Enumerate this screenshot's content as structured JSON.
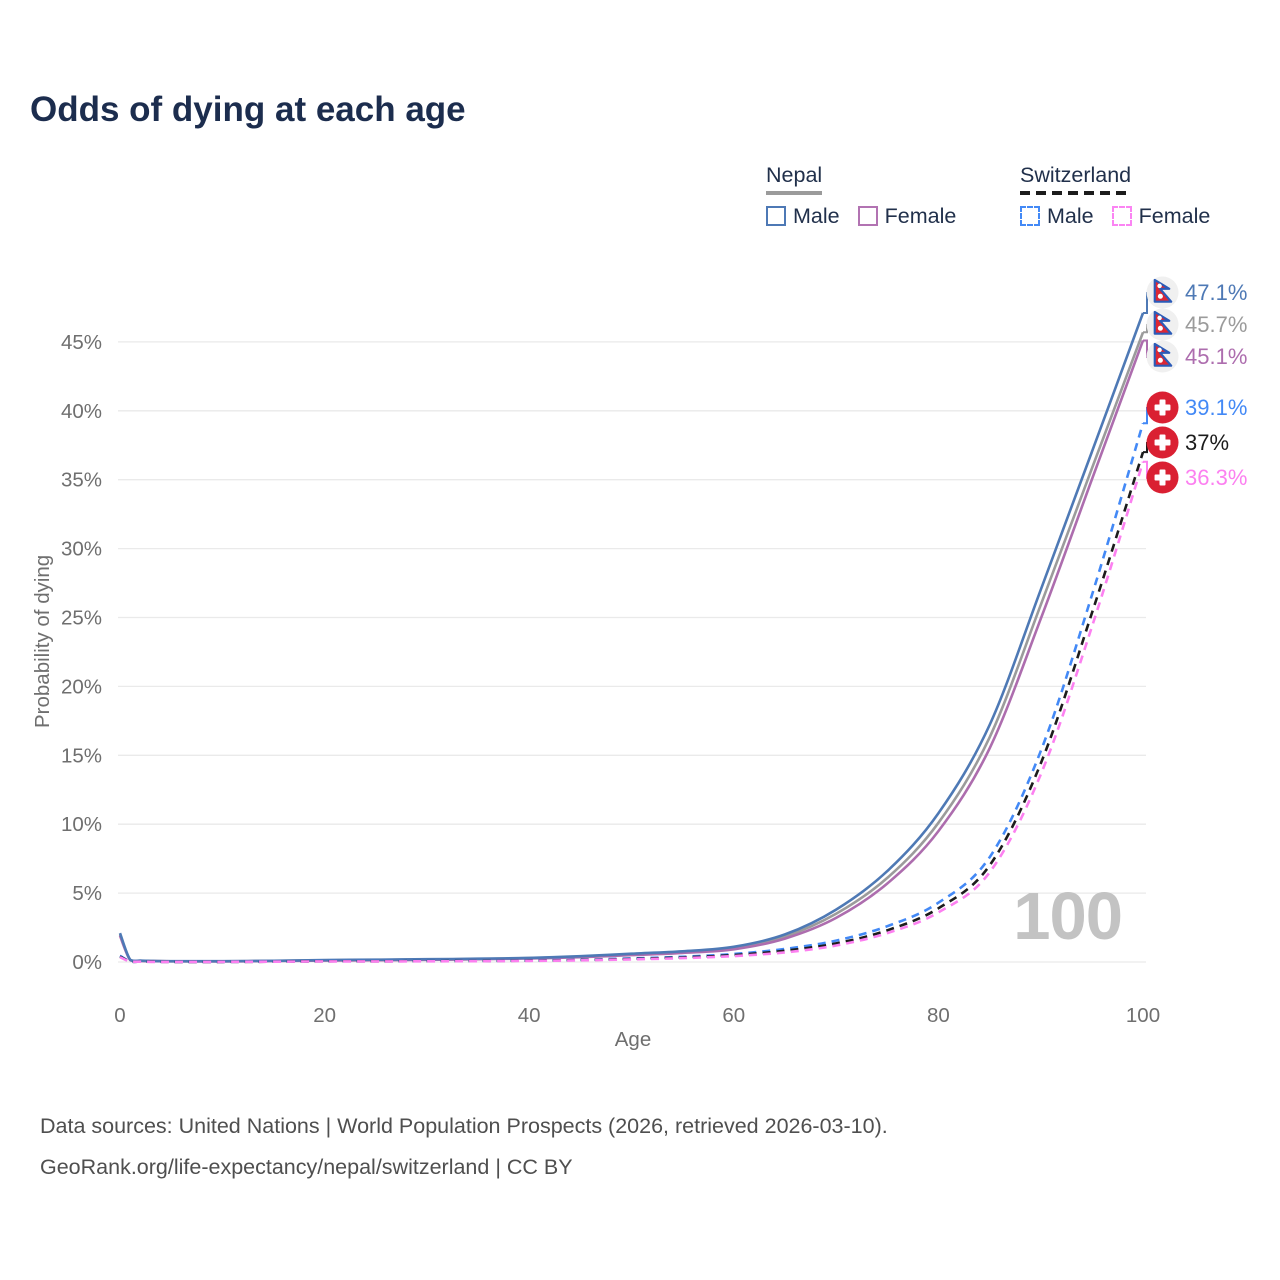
{
  "title": "Odds of dying at each age",
  "legend": {
    "groups": [
      {
        "name": "Nepal",
        "line_style": "solid",
        "line_color": "#9b9b9b",
        "items": [
          {
            "label": "Male",
            "color": "#4e79b5",
            "dash": false
          },
          {
            "label": "Female",
            "color": "#b273b2",
            "dash": false
          }
        ]
      },
      {
        "name": "Switzerland",
        "line_style": "dashed",
        "line_color": "#1c1c1c",
        "items": [
          {
            "label": "Male",
            "color": "#4389f6",
            "dash": true
          },
          {
            "label": "Female",
            "color": "#fb84f3",
            "dash": true
          }
        ]
      }
    ]
  },
  "chart_data": {
    "type": "line",
    "title": "Odds of dying at each age",
    "xlabel": "Age",
    "ylabel": "Probability of dying",
    "xlim": [
      0,
      100
    ],
    "ylim_percent": [
      0,
      49
    ],
    "grid": "horizontal",
    "watermark": "100",
    "xticks": [
      {
        "v": 0,
        "label": "0"
      },
      {
        "v": 20,
        "label": "20"
      },
      {
        "v": 40,
        "label": "40"
      },
      {
        "v": 60,
        "label": "60"
      },
      {
        "v": 80,
        "label": "80"
      },
      {
        "v": 100,
        "label": "100"
      }
    ],
    "yticks": [
      {
        "v": 0,
        "label": "0%"
      },
      {
        "v": 5,
        "label": "5%"
      },
      {
        "v": 10,
        "label": "10%"
      },
      {
        "v": 15,
        "label": "15%"
      },
      {
        "v": 20,
        "label": "20%"
      },
      {
        "v": 25,
        "label": "25%"
      },
      {
        "v": 30,
        "label": "30%"
      },
      {
        "v": 35,
        "label": "35%"
      },
      {
        "v": 40,
        "label": "40%"
      },
      {
        "v": 45,
        "label": "45%"
      }
    ],
    "series": [
      {
        "id": "nepal-male",
        "name": "Nepal Male",
        "color": "#4e79b5",
        "dash": false,
        "end_label": "47.1%",
        "flag": "nepal",
        "points": [
          [
            0,
            2.1
          ],
          [
            1,
            0.16
          ],
          [
            2,
            0.1
          ],
          [
            3,
            0.08
          ],
          [
            5,
            0.06
          ],
          [
            10,
            0.06
          ],
          [
            15,
            0.09
          ],
          [
            20,
            0.14
          ],
          [
            25,
            0.17
          ],
          [
            30,
            0.2
          ],
          [
            35,
            0.24
          ],
          [
            40,
            0.3
          ],
          [
            45,
            0.42
          ],
          [
            50,
            0.6
          ],
          [
            55,
            0.78
          ],
          [
            60,
            1.1
          ],
          [
            65,
            2.0
          ],
          [
            70,
            3.8
          ],
          [
            75,
            6.6
          ],
          [
            80,
            10.8
          ],
          [
            85,
            17.2
          ],
          [
            90,
            27.0
          ],
          [
            95,
            37.0
          ],
          [
            100,
            47.1
          ]
        ]
      },
      {
        "id": "nepal-all",
        "name": "Nepal",
        "color": "#9b9b9b",
        "dash": false,
        "end_label": "45.7%",
        "flag": "nepal",
        "points": [
          [
            0,
            2.0
          ],
          [
            1,
            0.15
          ],
          [
            2,
            0.09
          ],
          [
            3,
            0.07
          ],
          [
            5,
            0.05
          ],
          [
            10,
            0.05
          ],
          [
            15,
            0.08
          ],
          [
            20,
            0.12
          ],
          [
            25,
            0.15
          ],
          [
            30,
            0.18
          ],
          [
            35,
            0.22
          ],
          [
            40,
            0.28
          ],
          [
            45,
            0.38
          ],
          [
            50,
            0.55
          ],
          [
            55,
            0.72
          ],
          [
            60,
            1.0
          ],
          [
            65,
            1.85
          ],
          [
            70,
            3.5
          ],
          [
            75,
            6.1
          ],
          [
            80,
            10.1
          ],
          [
            85,
            16.3
          ],
          [
            90,
            25.9
          ],
          [
            95,
            35.8
          ],
          [
            100,
            45.7
          ]
        ]
      },
      {
        "id": "nepal-female",
        "name": "Nepal Female",
        "color": "#ad6dae",
        "dash": false,
        "end_label": "45.1%",
        "flag": "nepal",
        "points": [
          [
            0,
            1.9
          ],
          [
            1,
            0.14
          ],
          [
            2,
            0.08
          ],
          [
            3,
            0.06
          ],
          [
            5,
            0.05
          ],
          [
            10,
            0.04
          ],
          [
            15,
            0.07
          ],
          [
            20,
            0.1
          ],
          [
            25,
            0.13
          ],
          [
            30,
            0.16
          ],
          [
            35,
            0.2
          ],
          [
            40,
            0.26
          ],
          [
            45,
            0.35
          ],
          [
            50,
            0.5
          ],
          [
            55,
            0.66
          ],
          [
            60,
            0.92
          ],
          [
            65,
            1.7
          ],
          [
            70,
            3.2
          ],
          [
            75,
            5.7
          ],
          [
            80,
            9.5
          ],
          [
            85,
            15.5
          ],
          [
            90,
            24.9
          ],
          [
            95,
            35.0
          ],
          [
            100,
            45.1
          ]
        ]
      },
      {
        "id": "swiss-male",
        "name": "Switzerland Male",
        "color": "#4389f6",
        "dash": true,
        "end_label": "39.1%",
        "flag": "swiss",
        "points": [
          [
            0,
            0.45
          ],
          [
            1,
            0.04
          ],
          [
            2,
            0.02
          ],
          [
            3,
            0.02
          ],
          [
            5,
            0.01
          ],
          [
            10,
            0.01
          ],
          [
            15,
            0.03
          ],
          [
            20,
            0.06
          ],
          [
            25,
            0.06
          ],
          [
            30,
            0.07
          ],
          [
            35,
            0.08
          ],
          [
            40,
            0.11
          ],
          [
            45,
            0.16
          ],
          [
            50,
            0.26
          ],
          [
            55,
            0.38
          ],
          [
            60,
            0.58
          ],
          [
            65,
            0.95
          ],
          [
            70,
            1.55
          ],
          [
            75,
            2.6
          ],
          [
            80,
            4.3
          ],
          [
            85,
            7.6
          ],
          [
            90,
            15.3
          ],
          [
            95,
            26.6
          ],
          [
            100,
            39.1
          ]
        ]
      },
      {
        "id": "swiss-all",
        "name": "Switzerland",
        "color": "#1c1c1c",
        "dash": true,
        "end_label": "37%",
        "flag": "swiss",
        "points": [
          [
            0,
            0.4
          ],
          [
            1,
            0.03
          ],
          [
            2,
            0.02
          ],
          [
            3,
            0.02
          ],
          [
            5,
            0.01
          ],
          [
            10,
            0.01
          ],
          [
            15,
            0.02
          ],
          [
            20,
            0.05
          ],
          [
            25,
            0.05
          ],
          [
            30,
            0.06
          ],
          [
            35,
            0.07
          ],
          [
            40,
            0.1
          ],
          [
            45,
            0.14
          ],
          [
            50,
            0.22
          ],
          [
            55,
            0.33
          ],
          [
            60,
            0.5
          ],
          [
            65,
            0.82
          ],
          [
            70,
            1.35
          ],
          [
            75,
            2.3
          ],
          [
            80,
            3.9
          ],
          [
            85,
            7.0
          ],
          [
            90,
            14.4
          ],
          [
            95,
            25.3
          ],
          [
            100,
            37.0
          ]
        ]
      },
      {
        "id": "swiss-female",
        "name": "Switzerland Female",
        "color": "#fc80f0",
        "dash": true,
        "end_label": "36.3%",
        "flag": "swiss",
        "points": [
          [
            0,
            0.35
          ],
          [
            1,
            0.03
          ],
          [
            2,
            0.02
          ],
          [
            3,
            0.01
          ],
          [
            5,
            0.01
          ],
          [
            10,
            0.01
          ],
          [
            15,
            0.02
          ],
          [
            20,
            0.04
          ],
          [
            25,
            0.04
          ],
          [
            30,
            0.05
          ],
          [
            35,
            0.06
          ],
          [
            40,
            0.08
          ],
          [
            45,
            0.12
          ],
          [
            50,
            0.19
          ],
          [
            55,
            0.28
          ],
          [
            60,
            0.43
          ],
          [
            65,
            0.7
          ],
          [
            70,
            1.2
          ],
          [
            75,
            2.1
          ],
          [
            80,
            3.6
          ],
          [
            85,
            6.5
          ],
          [
            90,
            13.6
          ],
          [
            95,
            24.3
          ],
          [
            100,
            36.3
          ]
        ]
      }
    ]
  },
  "footer": {
    "line1": "Data sources: United Nations | World Population Prospects (2026, retrieved 2026-03-10).",
    "line2": "GeoRank.org/life-expectancy/nepal/switzerland | CC BY"
  }
}
